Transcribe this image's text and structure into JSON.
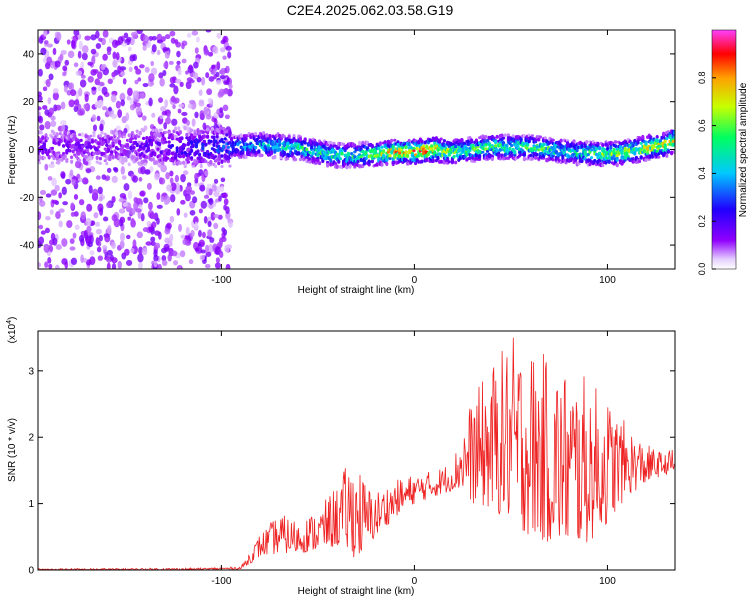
{
  "page_title": "C2E4.2025.062.03.58.G19",
  "chart_data": [
    {
      "type": "heatmap",
      "name": "spectrogram",
      "xlabel": "Height of straight line (km)",
      "ylabel": "Frequency (Hz)",
      "xlim": [
        -195,
        135
      ],
      "ylim": [
        -50,
        50
      ],
      "xticks": [
        -100,
        0,
        100
      ],
      "yticks": [
        -40,
        -20,
        0,
        20,
        40
      ],
      "colorbar": {
        "label": "Normalized spectral amplitude",
        "range": [
          0,
          1
        ],
        "ticks": [
          "0.0",
          "0.2",
          "0.4",
          "0.6",
          "0.8"
        ],
        "colors": [
          "#ffffff",
          "#9000ff",
          "#2000ff",
          "#00c8ff",
          "#00ff60",
          "#c8ff00",
          "#ffa000",
          "#ff0000",
          "#ff40ff"
        ]
      },
      "ridge": {
        "x": [
          -195,
          -150,
          -100,
          -80,
          -60,
          -40,
          -20,
          -10,
          0,
          10,
          20,
          40,
          60,
          80,
          100,
          110,
          120,
          130,
          135
        ],
        "frequency": [
          1,
          1,
          1,
          2,
          0.5,
          -2.5,
          -2,
          -1,
          -1,
          0,
          -1,
          1,
          1,
          -1,
          -2,
          -1,
          0.5,
          2,
          4
        ],
        "amplitude": [
          0.15,
          0.15,
          0.3,
          0.45,
          0.5,
          0.5,
          0.6,
          0.75,
          0.8,
          0.8,
          0.6,
          0.55,
          0.55,
          0.5,
          0.6,
          0.65,
          0.65,
          0.7,
          0.7
        ]
      },
      "noise_region_x": [
        -195,
        -95
      ]
    },
    {
      "type": "line",
      "name": "snr",
      "xlabel": "Height of straight line (km)",
      "ylabel": "SNR (10 * v/v)",
      "scale_note": "(x10",
      "scale_exp": "4",
      "xlim": [
        -195,
        135
      ],
      "ylim": [
        0,
        3.6
      ],
      "xticks": [
        -100,
        0,
        100
      ],
      "yticks": [
        0,
        1,
        2,
        3
      ],
      "color": "#ee2222",
      "envelope": {
        "x": [
          -195,
          -110,
          -90,
          -85,
          -80,
          -70,
          -60,
          -50,
          -40,
          -35,
          -30,
          -25,
          -20,
          -10,
          0,
          10,
          20,
          25,
          30,
          40,
          50,
          60,
          70,
          80,
          90,
          100,
          110,
          120,
          130,
          135
        ],
        "low": [
          0,
          0,
          0.01,
          0.1,
          0.2,
          0.25,
          0.25,
          0.3,
          0.35,
          0.3,
          0.15,
          0.3,
          0.5,
          0.8,
          1.0,
          1.1,
          1.2,
          1.2,
          1.0,
          0.9,
          0.7,
          0.5,
          0.4,
          0.35,
          0.4,
          0.7,
          1.1,
          1.3,
          1.45,
          1.4
        ],
        "high": [
          0.02,
          0.03,
          0.05,
          0.3,
          0.55,
          0.85,
          0.75,
          0.9,
          1.3,
          1.6,
          1.7,
          1.3,
          1.2,
          1.35,
          1.45,
          1.5,
          1.65,
          2.2,
          2.6,
          3.1,
          3.55,
          3.4,
          3.2,
          3.05,
          2.9,
          2.6,
          2.2,
          1.9,
          1.75,
          1.9
        ]
      }
    }
  ]
}
